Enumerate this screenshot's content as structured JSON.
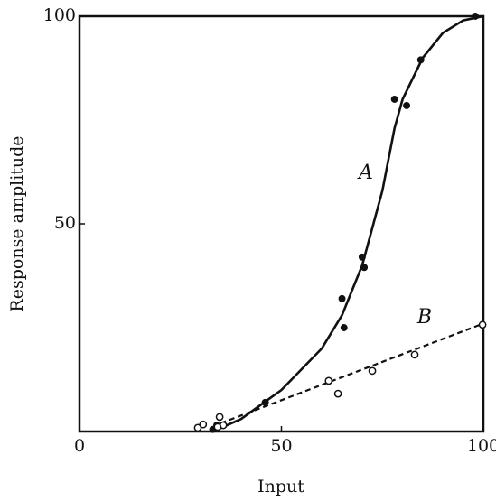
{
  "chart_data": {
    "type": "scatter",
    "xlabel": "Input",
    "ylabel": "Response amplitude",
    "xlim": [
      0,
      100
    ],
    "ylim": [
      0,
      100
    ],
    "xticks": [
      0,
      50,
      100
    ],
    "yticks": [
      50,
      100
    ],
    "color": "#111111",
    "series": [
      {
        "name": "A",
        "marker": "filled",
        "x": [
          33,
          34,
          46,
          65.5,
          65,
          70,
          70.5,
          78,
          81,
          84.5,
          98
        ],
        "values": [
          0.5,
          1.5,
          7,
          25,
          32,
          42,
          39.5,
          80,
          78.5,
          89.5,
          100
        ]
      },
      {
        "name": "B",
        "marker": "open",
        "x": [
          29.3,
          30.6,
          34.7,
          35.6,
          34.2,
          61.7,
          64,
          72.5,
          83,
          99.8
        ],
        "values": [
          0.9,
          1.7,
          3.5,
          1.5,
          1.1,
          12.2,
          9.1,
          14.6,
          18.5,
          25.7
        ]
      }
    ],
    "curves": [
      {
        "style": "solid",
        "x": [
          33,
          40,
          50,
          60,
          65,
          70,
          75,
          78,
          80,
          85,
          90,
          95,
          100
        ],
        "values": [
          0,
          3,
          10,
          20,
          28,
          40,
          58,
          73,
          80,
          90,
          96,
          99,
          100
        ]
      },
      {
        "style": "dashed",
        "x": [
          35,
          100
        ],
        "values": [
          2,
          26
        ]
      }
    ]
  }
}
